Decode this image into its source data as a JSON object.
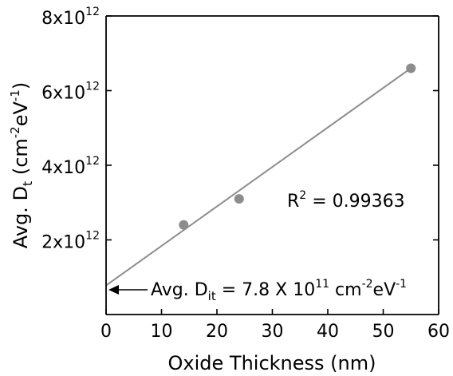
{
  "chart_data": {
    "type": "scatter",
    "xlabel": "Oxide Thickness (nm)",
    "ylabel": {
      "base": "Avg. D",
      "sub": "t",
      "units_open": " (cm",
      "units_exp1": "-2",
      "units_mid": "eV",
      "units_exp2": "-1",
      "units_close": ")"
    },
    "xlim": [
      0,
      60
    ],
    "ylim": [
      0,
      8000000000000.0
    ],
    "x_ticks": [
      {
        "value": 0,
        "label": "0"
      },
      {
        "value": 10,
        "label": "10"
      },
      {
        "value": 20,
        "label": "20"
      },
      {
        "value": 30,
        "label": "30"
      },
      {
        "value": 40,
        "label": "40"
      },
      {
        "value": 50,
        "label": "50"
      },
      {
        "value": 60,
        "label": "60"
      }
    ],
    "y_ticks": [
      {
        "value": 2000000000000.0,
        "mantissa": "2x10",
        "exponent": "12"
      },
      {
        "value": 4000000000000.0,
        "mantissa": "4x10",
        "exponent": "12"
      },
      {
        "value": 6000000000000.0,
        "mantissa": "6x10",
        "exponent": "12"
      },
      {
        "value": 8000000000000.0,
        "mantissa": "8x10",
        "exponent": "12"
      }
    ],
    "points": [
      {
        "x": 14,
        "y": 2400000000000.0
      },
      {
        "x": 24,
        "y": 3100000000000.0
      },
      {
        "x": 55,
        "y": 6600000000000.0
      }
    ],
    "fit_line": {
      "x": [
        0,
        55
      ],
      "y": [
        780000000000.0,
        6600000000000.0
      ]
    },
    "colors": {
      "points": "#8c8c8c",
      "fit": "#8c8c8c",
      "axis": "#000000",
      "arrow": "#000000"
    },
    "annotations": {
      "r2": {
        "base": "R",
        "sup": "2",
        "rest": " = 0.99363"
      },
      "intercept": {
        "pre": "Avg. D",
        "sub": "it",
        "mid": " = 7.8 X 10",
        "sup1": "11",
        "cm": " cm",
        "sup2": "-2",
        "ev": "eV",
        "sup3": "-1"
      }
    }
  }
}
